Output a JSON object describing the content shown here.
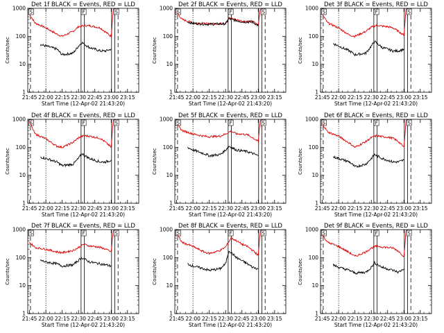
{
  "page": {
    "xlabel": "Start Time (12-Apr-02 21:43:20)",
    "ylabel": "Counts/sec"
  },
  "chart_data": {
    "type": "line",
    "yscale": "log",
    "ylim": [
      1,
      1000
    ],
    "xlim_minutes_after_start": [
      0,
      102
    ],
    "x_tick_labels": [
      "21:45",
      "22:00",
      "22:15",
      "22:30",
      "22:45",
      "23:00",
      "23:15"
    ],
    "y_tick_labels": [
      "1",
      "10",
      "100",
      "1000"
    ],
    "markers": {
      "dotted_at": "22:00",
      "letters": [
        "S",
        "F",
        "S"
      ]
    },
    "colors": {
      "events": "#000000",
      "lld": "#dd0000"
    },
    "panels": [
      {
        "title": "Det 1f BLACK = Events, RED = LLD",
        "lld": {
          "x": [
            "21:45",
            "21:50",
            "22:00",
            "22:10",
            "22:15",
            "22:25",
            "22:30",
            "22:35",
            "22:40",
            "22:45",
            "22:50",
            "22:55",
            "23:00",
            "23:02"
          ],
          "y": [
            600,
            300,
            200,
            120,
            100,
            150,
            220,
            240,
            240,
            220,
            200,
            140,
            100,
            1000
          ]
        },
        "events": {
          "x": [
            "21:55",
            "22:00",
            "22:10",
            "22:15",
            "22:25",
            "22:30",
            "22:33",
            "22:40",
            "22:50",
            "22:55",
            "23:00"
          ],
          "y": [
            50,
            45,
            35,
            22,
            25,
            45,
            60,
            40,
            30,
            30,
            35
          ]
        }
      },
      {
        "title": "Det 2f BLACK = Events, RED = LLD",
        "lld": {
          "x": [
            "21:45",
            "21:50",
            "21:55",
            "22:00",
            "22:15",
            "22:30",
            "22:33",
            "22:45",
            "22:55",
            "23:00",
            "23:02"
          ],
          "y": [
            700,
            400,
            350,
            300,
            280,
            290,
            450,
            350,
            340,
            250,
            1000
          ]
        },
        "events": {
          "x": [
            "21:55",
            "22:00",
            "22:15",
            "22:30",
            "22:33",
            "22:45",
            "22:55",
            "23:00"
          ],
          "y": [
            330,
            290,
            270,
            280,
            420,
            330,
            320,
            240
          ]
        }
      },
      {
        "title": "Det 3f BLACK = Events, RED = LLD",
        "lld": {
          "x": [
            "21:45",
            "21:50",
            "22:00",
            "22:10",
            "22:15",
            "22:25",
            "22:30",
            "22:35",
            "22:40",
            "22:45",
            "22:50",
            "22:55",
            "23:00",
            "23:02"
          ],
          "y": [
            600,
            300,
            200,
            110,
            100,
            150,
            210,
            250,
            230,
            220,
            200,
            150,
            110,
            1000
          ]
        },
        "events": {
          "x": [
            "21:55",
            "22:00",
            "22:10",
            "22:15",
            "22:25",
            "22:30",
            "22:33",
            "22:40",
            "22:50",
            "22:55",
            "23:00"
          ],
          "y": [
            55,
            45,
            30,
            22,
            25,
            45,
            65,
            40,
            30,
            30,
            35
          ]
        }
      },
      {
        "title": "Det 4f BLACK = Events, RED = LLD",
        "lld": {
          "x": [
            "21:45",
            "21:50",
            "22:00",
            "22:10",
            "22:15",
            "22:25",
            "22:30",
            "22:35",
            "22:40",
            "22:45",
            "22:50",
            "22:55",
            "23:00",
            "23:02"
          ],
          "y": [
            800,
            300,
            200,
            110,
            100,
            150,
            220,
            260,
            250,
            230,
            210,
            150,
            100,
            1000
          ]
        },
        "events": {
          "x": [
            "21:55",
            "22:00",
            "22:10",
            "22:15",
            "22:25",
            "22:30",
            "22:33",
            "22:40",
            "22:50",
            "22:55",
            "23:00"
          ],
          "y": [
            45,
            40,
            30,
            22,
            25,
            40,
            60,
            40,
            30,
            30,
            35
          ]
        }
      },
      {
        "title": "Det 5f BLACK = Events, RED = LLD",
        "lld": {
          "x": [
            "21:45",
            "21:50",
            "22:00",
            "22:10",
            "22:15",
            "22:25",
            "22:30",
            "22:35",
            "22:40",
            "22:45",
            "22:50",
            "22:55",
            "23:00",
            "23:02"
          ],
          "y": [
            650,
            400,
            300,
            250,
            240,
            250,
            300,
            380,
            300,
            300,
            280,
            220,
            160,
            1000
          ]
        },
        "events": {
          "x": [
            "21:55",
            "22:00",
            "22:10",
            "22:15",
            "22:25",
            "22:30",
            "22:33",
            "22:40",
            "22:50",
            "22:55",
            "23:00"
          ],
          "y": [
            100,
            80,
            60,
            50,
            55,
            80,
            110,
            80,
            70,
            60,
            50
          ]
        }
      },
      {
        "title": "Det 6f BLACK = Events, RED = LLD",
        "lld": {
          "x": [
            "21:45",
            "21:50",
            "22:00",
            "22:10",
            "22:15",
            "22:25",
            "22:30",
            "22:35",
            "22:40",
            "22:45",
            "22:50",
            "22:55",
            "23:00",
            "23:02"
          ],
          "y": [
            700,
            350,
            250,
            140,
            100,
            160,
            220,
            260,
            240,
            230,
            210,
            160,
            100,
            1000
          ]
        },
        "events": {
          "x": [
            "21:55",
            "22:00",
            "22:10",
            "22:15",
            "22:25",
            "22:30",
            "22:33",
            "22:40",
            "22:50",
            "22:55",
            "23:00"
          ],
          "y": [
            45,
            40,
            30,
            20,
            25,
            40,
            55,
            40,
            30,
            30,
            35
          ]
        }
      },
      {
        "title": "Det 7f BLACK = Events, RED = LLD",
        "lld": {
          "x": [
            "21:45",
            "21:50",
            "22:00",
            "22:10",
            "22:15",
            "22:25",
            "22:30",
            "22:35",
            "22:40",
            "22:45",
            "22:50",
            "22:55",
            "23:00",
            "23:02"
          ],
          "y": [
            350,
            230,
            200,
            160,
            150,
            180,
            230,
            300,
            260,
            250,
            230,
            200,
            160,
            1000
          ]
        },
        "events": {
          "x": [
            "21:55",
            "22:00",
            "22:10",
            "22:15",
            "22:25",
            "22:30",
            "22:33",
            "22:40",
            "22:50",
            "22:55",
            "23:00"
          ],
          "y": [
            80,
            70,
            60,
            50,
            55,
            80,
            100,
            70,
            60,
            55,
            50
          ]
        }
      },
      {
        "title": "Det 8f BLACK = Events, RED = LLD",
        "lld": {
          "x": [
            "21:45",
            "21:50",
            "22:00",
            "22:10",
            "22:15",
            "22:25",
            "22:30",
            "22:35",
            "22:40",
            "22:45",
            "22:50",
            "22:55",
            "23:00",
            "23:02"
          ],
          "y": [
            700,
            350,
            250,
            160,
            140,
            180,
            240,
            500,
            400,
            300,
            250,
            180,
            120,
            1000
          ]
        },
        "events": {
          "x": [
            "21:55",
            "22:00",
            "22:10",
            "22:15",
            "22:25",
            "22:30",
            "22:33",
            "22:40",
            "22:50",
            "22:55",
            "23:00"
          ],
          "y": [
            60,
            50,
            40,
            35,
            40,
            60,
            180,
            100,
            60,
            45,
            40
          ]
        }
      },
      {
        "title": "Det 9f BLACK = Events, RED = LLD",
        "lld": {
          "x": [
            "21:45",
            "21:50",
            "22:00",
            "22:10",
            "22:15",
            "22:25",
            "22:30",
            "22:35",
            "22:40",
            "22:45",
            "22:50",
            "22:55",
            "23:00",
            "23:02"
          ],
          "y": [
            650,
            350,
            250,
            150,
            110,
            160,
            220,
            260,
            240,
            230,
            220,
            170,
            110,
            1000
          ]
        },
        "events": {
          "x": [
            "21:55",
            "22:00",
            "22:10",
            "22:15",
            "22:25",
            "22:30",
            "22:33",
            "22:40",
            "22:50",
            "22:55",
            "23:00"
          ],
          "y": [
            55,
            45,
            35,
            28,
            30,
            45,
            65,
            45,
            35,
            30,
            40
          ]
        }
      }
    ]
  }
}
